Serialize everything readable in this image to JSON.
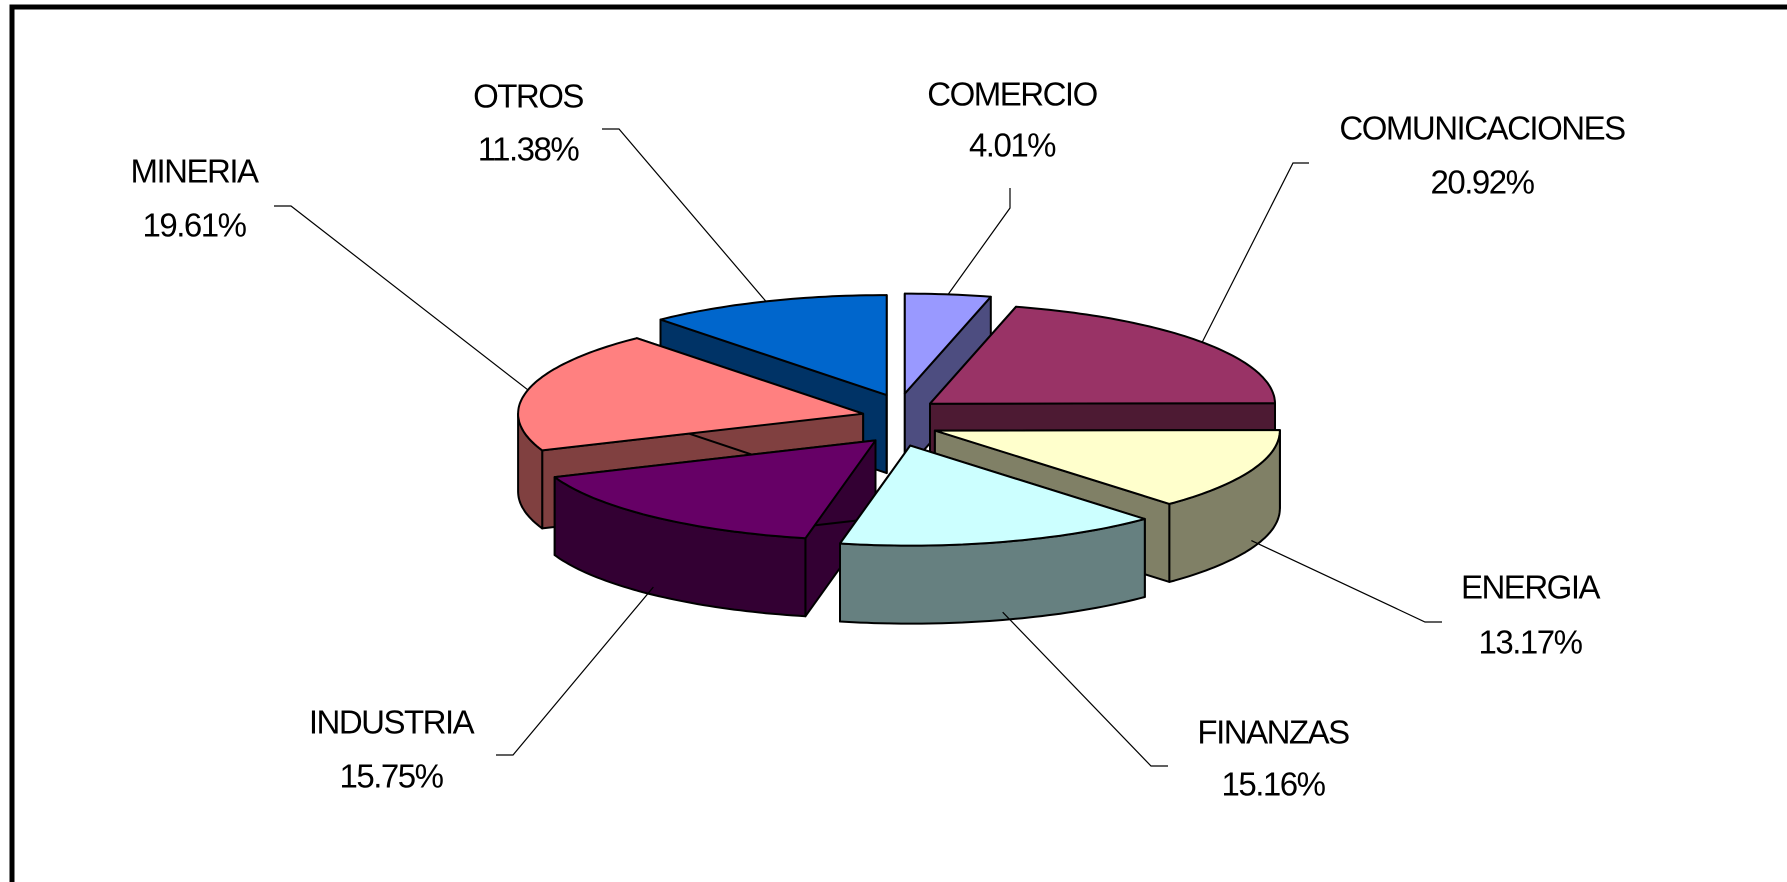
{
  "chart_data": {
    "type": "pie",
    "categories": [
      "COMERCIO",
      "COMUNICACIONES",
      "ENERGIA",
      "FINANZAS",
      "INDUSTRIA",
      "MINERIA",
      "OTROS"
    ],
    "values": [
      4.01,
      20.92,
      13.17,
      15.16,
      15.75,
      19.61,
      11.38
    ],
    "value_labels": [
      "4.01%",
      "20.92%",
      "13.17%",
      "15.16%",
      "15.75%",
      "19.61%",
      "11.38%"
    ],
    "colors": [
      "#9999ff",
      "#993366",
      "#ffffcc",
      "#ccffff",
      "#660066",
      "#ff8080",
      "#0066cc"
    ]
  }
}
